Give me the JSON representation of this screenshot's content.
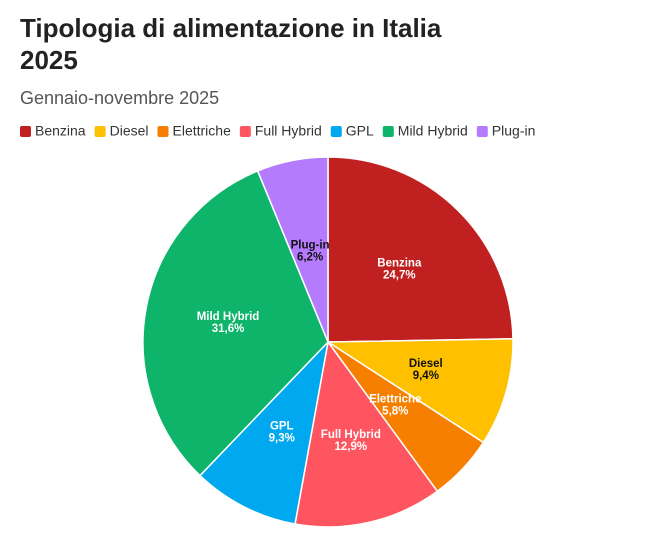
{
  "chart_data": {
    "type": "pie",
    "title": "Tipologia di alimentazione in Italia 2025",
    "subtitle": "Gennaio-novembre 2025",
    "categories": [
      "Benzina",
      "Diesel",
      "Elettriche",
      "Full Hybrid",
      "GPL",
      "Mild Hybrid",
      "Plug-in"
    ],
    "values": [
      24.7,
      9.4,
      5.8,
      12.9,
      9.3,
      31.6,
      6.2
    ],
    "value_labels": [
      "24,7%",
      "9,4%",
      "5,8%",
      "12,9%",
      "9,3%",
      "31,6%",
      "6,2%"
    ],
    "colors": [
      "#c0201f",
      "#ffc000",
      "#f77f00",
      "#ff5561",
      "#00a8f0",
      "#0db46a",
      "#b57bff"
    ]
  }
}
